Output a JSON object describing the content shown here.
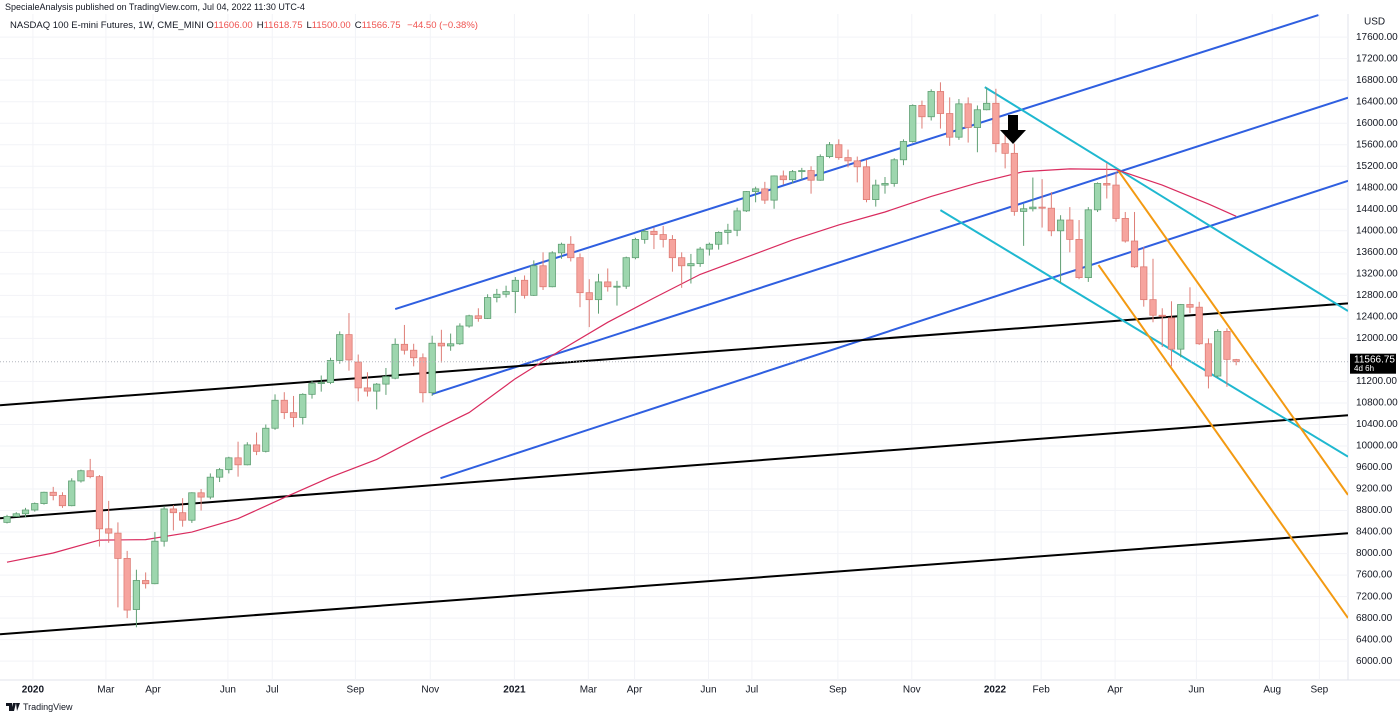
{
  "header": {
    "publisher_line": "SpecialeAnalysis published on TradingView.com, Jul 04, 2022 11:30 UTC-4",
    "footer": "TradingView"
  },
  "chart_data": {
    "type": "candlestick",
    "title": "NASDAQ 100 E-mini Futures, 1W, CME_MINI",
    "ohlc_legend": [
      {
        "key": "O",
        "text": "11606.00"
      },
      {
        "key": "H",
        "text": "11618.75"
      },
      {
        "key": "L",
        "text": "11500.00"
      },
      {
        "key": "C",
        "text": "11566.75"
      }
    ],
    "change": "−44.50 (−0.38%)",
    "currency": "USD",
    "last_label": "11566.75",
    "countdown": "4d 6h",
    "up_color": "#9dd6ae",
    "up_border": "#5f9f73",
    "down_color": "#f6a49e",
    "down_border": "#de7d76",
    "grid": true,
    "open": [
      8580,
      8690,
      8740,
      8810,
      8930,
      9140,
      9080,
      8890,
      9350,
      9540,
      9430,
      8460,
      8380,
      7910,
      6960,
      7500,
      7440,
      8230,
      8830,
      8760,
      8620,
      9130,
      9050,
      9420,
      9560,
      9780,
      9650,
      10020,
      9900,
      10330,
      10850,
      10620,
      10530,
      10960,
      11160,
      11180,
      11590,
      12070,
      11560,
      11080,
      11020,
      11150,
      11260,
      11890,
      11780,
      11640,
      10990,
      11910,
      11860,
      11900,
      12230,
      12420,
      12370,
      12760,
      12820,
      12870,
      13080,
      12800,
      13350,
      12960,
      13590,
      13750,
      13500,
      12850,
      12720,
      13050,
      12960,
      12970,
      13500,
      13840,
      13990,
      13930,
      13840,
      13500,
      13350,
      13390,
      13660,
      13750,
      13970,
      14010,
      14370,
      14730,
      14780,
      14570,
      15020,
      14950,
      15100,
      15120,
      14940,
      15380,
      15600,
      15360,
      15300,
      15190,
      14580,
      14850,
      14880,
      15320,
      15660,
      16330,
      16120,
      16590,
      16180,
      15740,
      16360,
      15920,
      16250,
      16370,
      15620,
      15440,
      14360,
      14410,
      14440,
      14420,
      14000,
      14200,
      13840,
      13130,
      14390,
      14880,
      14850,
      14230,
      13810,
      13330,
      12720,
      12430,
      12380,
      11800,
      12630,
      12580,
      11900,
      11300,
      12130,
      11606
    ],
    "high": [
      8720,
      8770,
      8850,
      8950,
      9150,
      9240,
      9140,
      9400,
      9560,
      9760,
      9460,
      8980,
      8580,
      8050,
      7700,
      7650,
      8400,
      8880,
      8900,
      9030,
      9140,
      9200,
      9490,
      9590,
      9800,
      10080,
      10070,
      10250,
      10400,
      10960,
      11000,
      10930,
      10980,
      11210,
      11310,
      11640,
      12130,
      12470,
      11700,
      11370,
      11170,
      11450,
      12000,
      12250,
      11900,
      11720,
      12050,
      12160,
      12090,
      12280,
      12440,
      12560,
      12820,
      12920,
      12980,
      13140,
      13170,
      13450,
      13600,
      13620,
      13780,
      13900,
      13580,
      13100,
      13200,
      13300,
      13070,
      13520,
      13870,
      14040,
      14060,
      14090,
      13920,
      13600,
      13570,
      13700,
      13780,
      13990,
      14130,
      14430,
      14740,
      14820,
      14910,
      15030,
      15120,
      15130,
      15170,
      15200,
      15420,
      15650,
      15700,
      15510,
      15380,
      15320,
      14950,
      15000,
      15350,
      15700,
      16350,
      16420,
      16630,
      16760,
      16480,
      16450,
      16480,
      16330,
      16660,
      16640,
      15860,
      15620,
      14500,
      14990,
      14960,
      14720,
      14290,
      14440,
      14200,
      14440,
      14900,
      15260,
      15090,
      14350,
      14350,
      13700,
      13480,
      12560,
      12690,
      12640,
      12950,
      12680,
      12000,
      12170,
      12190,
      11618.75
    ],
    "low": [
      8560,
      8680,
      8680,
      8780,
      8910,
      8990,
      8850,
      8880,
      9320,
      9400,
      8130,
      8200,
      7000,
      6800,
      6630,
      7350,
      7430,
      8130,
      8430,
      8500,
      8570,
      8800,
      9010,
      9330,
      9490,
      9430,
      9640,
      9830,
      9880,
      10300,
      10500,
      10350,
      10400,
      10880,
      11010,
      11150,
      11530,
      11400,
      10830,
      10920,
      10680,
      10950,
      11240,
      11700,
      11480,
      10810,
      10930,
      11550,
      11770,
      11880,
      12200,
      12310,
      12360,
      12670,
      12760,
      12470,
      12740,
      12790,
      12900,
      12950,
      13480,
      13430,
      12580,
      12210,
      12460,
      12870,
      12610,
      12920,
      13470,
      13760,
      13660,
      13690,
      13240,
      12940,
      13020,
      13330,
      13540,
      13650,
      13750,
      13900,
      14350,
      14530,
      14500,
      14410,
      14860,
      14880,
      14950,
      14690,
      14930,
      15350,
      15320,
      15180,
      14900,
      14530,
      14450,
      14690,
      14820,
      15220,
      15640,
      15900,
      16050,
      15900,
      15580,
      15690,
      15640,
      15460,
      16240,
      15460,
      15160,
      14280,
      13720,
      14360,
      14060,
      13900,
      13030,
      13600,
      13100,
      13050,
      14350,
      14600,
      14170,
      13780,
      13310,
      12590,
      12300,
      11840,
      11480,
      11650,
      12470,
      11880,
      11070,
      11270,
      11100,
      11500
    ],
    "close": [
      8690,
      8740,
      8810,
      8930,
      9140,
      9080,
      8890,
      9350,
      9540,
      9430,
      8460,
      8380,
      7910,
      6950,
      7500,
      7440,
      8230,
      8830,
      8760,
      8620,
      9130,
      9050,
      9420,
      9560,
      9780,
      9650,
      10020,
      9900,
      10330,
      10850,
      10620,
      10530,
      10960,
      11160,
      11180,
      11590,
      12070,
      11600,
      11080,
      11020,
      11150,
      11290,
      11890,
      11780,
      11640,
      10990,
      11910,
      11860,
      11900,
      12230,
      12420,
      12370,
      12760,
      12820,
      12870,
      13080,
      12800,
      13350,
      12960,
      13590,
      13750,
      13500,
      12850,
      12720,
      13050,
      12960,
      12970,
      13500,
      13840,
      13990,
      13930,
      13840,
      13500,
      13350,
      13390,
      13660,
      13750,
      13970,
      14010,
      14370,
      14730,
      14780,
      14570,
      15020,
      14950,
      15100,
      15120,
      14940,
      15380,
      15600,
      15360,
      15300,
      15190,
      14580,
      14850,
      14880,
      15320,
      15660,
      16330,
      16120,
      16590,
      16180,
      15740,
      16360,
      15920,
      16250,
      16370,
      15620,
      15440,
      14360,
      14410,
      14440,
      14420,
      14000,
      14200,
      13840,
      13130,
      14390,
      14880,
      14850,
      14230,
      13810,
      13330,
      12720,
      12430,
      12410,
      11800,
      12630,
      12580,
      11900,
      11300,
      12130,
      11610,
      11566.75
    ],
    "moving_average": {
      "color": "#d92b5e",
      "x": [
        0,
        5,
        10,
        15,
        20,
        25,
        30,
        35,
        40,
        45,
        50,
        55,
        60,
        65,
        70,
        75,
        80,
        85,
        90,
        95,
        100,
        105,
        110,
        115,
        120,
        125,
        130,
        133
      ],
      "values": [
        7840,
        8010,
        8250,
        8260,
        8400,
        8650,
        9040,
        9420,
        9750,
        10200,
        10620,
        11250,
        11790,
        12300,
        12750,
        13190,
        13510,
        13830,
        14110,
        14350,
        14640,
        14890,
        15100,
        15150,
        15140,
        14850,
        14500,
        14270
      ]
    },
    "trendlines": [
      {
        "color": "#2f5fe0",
        "x": [
          42.0,
          141.9
        ],
        "values": [
          12544,
          18009
        ]
      },
      {
        "color": "#2f5fe0",
        "x": [
          46.0,
          145.1
        ],
        "values": [
          10964,
          16474
        ]
      },
      {
        "color": "#2f5fe0",
        "x": [
          46.9,
          145.1
        ],
        "values": [
          9402,
          14930
        ]
      },
      {
        "color": "#000000",
        "x": [
          -0.76,
          145.1
        ],
        "values": [
          10759,
          12650
        ]
      },
      {
        "color": "#000000",
        "x": [
          -0.76,
          145.1
        ],
        "values": [
          8658,
          10570
        ]
      },
      {
        "color": "#000000",
        "x": [
          -0.76,
          145.1
        ],
        "values": [
          6502,
          8377
        ]
      },
      {
        "color": "#1fb8d0",
        "x": [
          105.8,
          145.1
        ],
        "values": [
          16671,
          12510
        ]
      },
      {
        "color": "#1fb8d0",
        "x": [
          101.0,
          145.1
        ],
        "values": [
          14384,
          9800
        ]
      },
      {
        "color": "#f39a12",
        "x": [
          120.2,
          145.1
        ],
        "values": [
          15128,
          9090
        ]
      },
      {
        "color": "#f39a12",
        "x": [
          118.1,
          145.1
        ],
        "values": [
          13362,
          6800
        ]
      }
    ],
    "xlim": [
      -0.76,
      145.1
    ],
    "ylim": [
      5650,
      18030
    ],
    "xticks": [
      {
        "value": 2.8,
        "label": "2020"
      },
      {
        "value": 10.7,
        "label": "Mar"
      },
      {
        "value": 15.8,
        "label": "Apr"
      },
      {
        "value": 23.9,
        "label": "Jun"
      },
      {
        "value": 28.7,
        "label": "Jul"
      },
      {
        "value": 37.7,
        "label": "Sep"
      },
      {
        "value": 45.8,
        "label": "Nov"
      },
      {
        "value": 54.9,
        "label": "2021"
      },
      {
        "value": 62.9,
        "label": "Mar"
      },
      {
        "value": 67.9,
        "label": "Apr"
      },
      {
        "value": 75.9,
        "label": "Jun"
      },
      {
        "value": 80.6,
        "label": "Jul"
      },
      {
        "value": 89.9,
        "label": "Sep"
      },
      {
        "value": 97.9,
        "label": "Nov"
      },
      {
        "value": 106.9,
        "label": "2022"
      },
      {
        "value": 111.9,
        "label": "Feb"
      },
      {
        "value": 119.9,
        "label": "Apr"
      },
      {
        "value": 128.7,
        "label": "Jun"
      },
      {
        "value": 136.9,
        "label": "Aug"
      },
      {
        "value": 142.0,
        "label": "Sep"
      }
    ],
    "yticks": [
      {
        "value": 6000,
        "label": "6000.00"
      },
      {
        "value": 6400,
        "label": "6400.00"
      },
      {
        "value": 6800,
        "label": "6800.00"
      },
      {
        "value": 7200,
        "label": "7200.00"
      },
      {
        "value": 7600,
        "label": "7600.00"
      },
      {
        "value": 8000,
        "label": "8000.00"
      },
      {
        "value": 8400,
        "label": "8400.00"
      },
      {
        "value": 8800,
        "label": "8800.00"
      },
      {
        "value": 9200,
        "label": "9200.00"
      },
      {
        "value": 9600,
        "label": "9600.00"
      },
      {
        "value": 10000,
        "label": "10000.00"
      },
      {
        "value": 10400,
        "label": "10400.00"
      },
      {
        "value": 10800,
        "label": "10800.00"
      },
      {
        "value": 11200,
        "label": "11200.00"
      },
      {
        "value": 12000,
        "label": "12000.00"
      },
      {
        "value": 12400,
        "label": "12400.00"
      },
      {
        "value": 12800,
        "label": "12800.00"
      },
      {
        "value": 13200,
        "label": "13200.00"
      },
      {
        "value": 13600,
        "label": "13600.00"
      },
      {
        "value": 14000,
        "label": "14000.00"
      },
      {
        "value": 14400,
        "label": "14400.00"
      },
      {
        "value": 14800,
        "label": "14800.00"
      },
      {
        "value": 15200,
        "label": "15200.00"
      },
      {
        "value": 15600,
        "label": "15600.00"
      },
      {
        "value": 16000,
        "label": "16000.00"
      },
      {
        "value": 16400,
        "label": "16400.00"
      },
      {
        "value": 16800,
        "label": "16800.00"
      },
      {
        "value": 17200,
        "label": "17200.00"
      },
      {
        "value": 17600,
        "label": "17600.00"
      }
    ]
  }
}
